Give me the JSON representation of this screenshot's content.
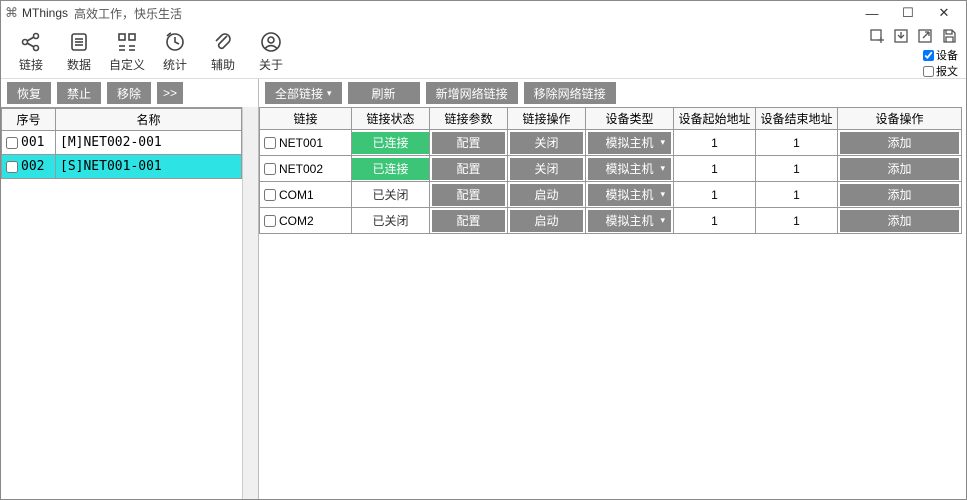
{
  "window": {
    "app_name": "MThings",
    "subtitle": "高效工作，快乐生活"
  },
  "toolbar": {
    "items": [
      {
        "label": "链接",
        "icon": "share"
      },
      {
        "label": "数据",
        "icon": "list"
      },
      {
        "label": "自定义",
        "icon": "grid"
      },
      {
        "label": "统计",
        "icon": "clock"
      },
      {
        "label": "辅助",
        "icon": "clip"
      },
      {
        "label": "关于",
        "icon": "user"
      }
    ],
    "checkboxes": [
      {
        "label": "设备",
        "checked": true
      },
      {
        "label": "报文",
        "checked": false
      }
    ]
  },
  "left_buttons": {
    "restore": "恢复",
    "forbid": "禁止",
    "remove": "移除",
    "more": ">>"
  },
  "left_table": {
    "headers": {
      "idx": "序号",
      "name": "名称"
    },
    "rows": [
      {
        "idx": "001",
        "name": "[M]NET002-001",
        "selected": false
      },
      {
        "idx": "002",
        "name": "[S]NET001-001",
        "selected": true
      }
    ]
  },
  "right_buttons": {
    "all_links": "全部链接",
    "refresh": "刷新",
    "add_net": "新增网络链接",
    "remove_net": "移除网络链接"
  },
  "right_table": {
    "headers": {
      "link": "链接",
      "status": "链接状态",
      "params": "链接参数",
      "op": "链接操作",
      "devtype": "设备类型",
      "startaddr": "设备起始地址",
      "endaddr": "设备结束地址",
      "devop": "设备操作"
    },
    "status_connected": "已连接",
    "status_closed": "已关闭",
    "btn_config": "配置",
    "btn_close": "关闭",
    "btn_start": "启动",
    "btn_add": "添加",
    "devtype_sim": "模拟主机",
    "rows": [
      {
        "name": "NET001",
        "connected": true,
        "op": "close",
        "start": "1",
        "end": "1"
      },
      {
        "name": "NET002",
        "connected": true,
        "op": "close",
        "start": "1",
        "end": "1"
      },
      {
        "name": "COM1",
        "connected": false,
        "op": "start",
        "start": "1",
        "end": "1"
      },
      {
        "name": "COM2",
        "connected": false,
        "op": "start",
        "start": "1",
        "end": "1"
      }
    ]
  },
  "colors": {
    "connected_bg": "#3cc477",
    "selected_bg": "#2ee3e3",
    "button_bg": "#888888"
  }
}
